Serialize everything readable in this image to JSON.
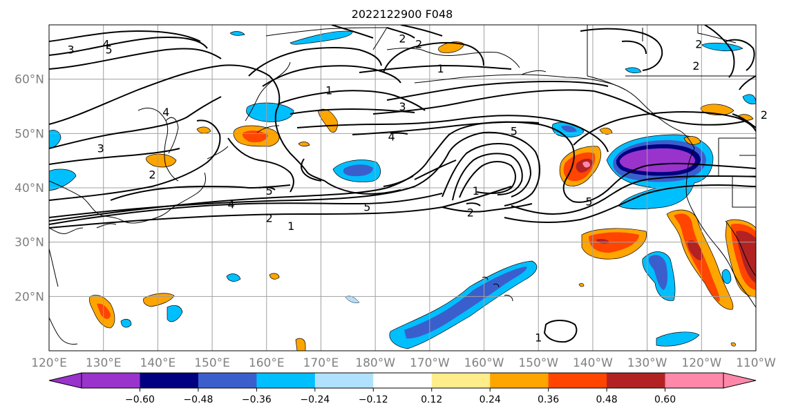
{
  "title": "2022122900 F048",
  "colors": {
    "tick_label": "#808080",
    "grid": "#a0a0a0",
    "contour": "#000000",
    "coast": "#000000"
  },
  "map": {
    "lon_range": [
      120,
      250
    ],
    "lat_range": [
      10,
      70
    ],
    "lon_ticks": [
      {
        "lon": 120,
        "label": "120°E"
      },
      {
        "lon": 130,
        "label": "130°E"
      },
      {
        "lon": 140,
        "label": "140°E"
      },
      {
        "lon": 150,
        "label": "150°E"
      },
      {
        "lon": 160,
        "label": "160°E"
      },
      {
        "lon": 170,
        "label": "170°E"
      },
      {
        "lon": 180,
        "label": "180°W"
      },
      {
        "lon": 190,
        "label": "170°W"
      },
      {
        "lon": 200,
        "label": "160°W"
      },
      {
        "lon": 210,
        "label": "150°W"
      },
      {
        "lon": 220,
        "label": "140°W"
      },
      {
        "lon": 230,
        "label": "130°W"
      },
      {
        "lon": 240,
        "label": "120°W"
      },
      {
        "lon": 250,
        "label": "110°W"
      }
    ],
    "lat_ticks": [
      {
        "lat": 60,
        "label": "60°N"
      },
      {
        "lat": 50,
        "label": "50°N"
      },
      {
        "lat": 40,
        "label": "40°N"
      },
      {
        "lat": 30,
        "label": "30°N"
      },
      {
        "lat": 20,
        "label": "20°N"
      }
    ]
  },
  "colorbar": {
    "colors": [
      "#9933cc",
      "#000080",
      "#3a5fcd",
      "#00bfff",
      "#b0e2ff",
      "#ffffff",
      "#ffec8b",
      "#ffa500",
      "#ff4500",
      "#b22222",
      "#ff88aa"
    ],
    "labels": [
      "−0.60",
      "−0.48",
      "−0.36",
      "−0.24",
      "−0.12",
      "0.12",
      "0.24",
      "0.36",
      "0.48",
      "0.60"
    ]
  },
  "contour_labels": [
    {
      "text": "3",
      "lon": 124,
      "lat": 65.5
    },
    {
      "text": "4",
      "lon": 130.5,
      "lat": 66.5
    },
    {
      "text": "5",
      "lon": 131,
      "lat": 65.5
    },
    {
      "text": "2",
      "lon": 185,
      "lat": 67.5
    },
    {
      "text": "2",
      "lon": 188,
      "lat": 66.5
    },
    {
      "text": "1",
      "lon": 192,
      "lat": 62
    },
    {
      "text": "1",
      "lon": 171.5,
      "lat": 58
    },
    {
      "text": "3",
      "lon": 185,
      "lat": 55
    },
    {
      "text": "4",
      "lon": 141.5,
      "lat": 54
    },
    {
      "text": "3",
      "lon": 129.5,
      "lat": 47.3
    },
    {
      "text": "2",
      "lon": 139,
      "lat": 42.5
    },
    {
      "text": "5",
      "lon": 205.5,
      "lat": 50.5
    },
    {
      "text": "4",
      "lon": 183,
      "lat": 49.5
    },
    {
      "text": "5",
      "lon": 160.5,
      "lat": 39.5
    },
    {
      "text": "4",
      "lon": 153.5,
      "lat": 37
    },
    {
      "text": "5",
      "lon": 178.5,
      "lat": 36.5
    },
    {
      "text": "2",
      "lon": 160.5,
      "lat": 34.5
    },
    {
      "text": "1",
      "lon": 164.5,
      "lat": 33
    },
    {
      "text": "1",
      "lon": 198.5,
      "lat": 39.5
    },
    {
      "text": "2",
      "lon": 197.5,
      "lat": 35.5
    },
    {
      "text": "5",
      "lon": 219.3,
      "lat": 37.5
    },
    {
      "text": "2",
      "lon": 239,
      "lat": 62.5
    },
    {
      "text": "2",
      "lon": 251.5,
      "lat": 53.5
    },
    {
      "text": "2",
      "lon": 239.5,
      "lat": 66.5
    },
    {
      "text": "1",
      "lon": 210,
      "lat": 12.5
    }
  ]
}
